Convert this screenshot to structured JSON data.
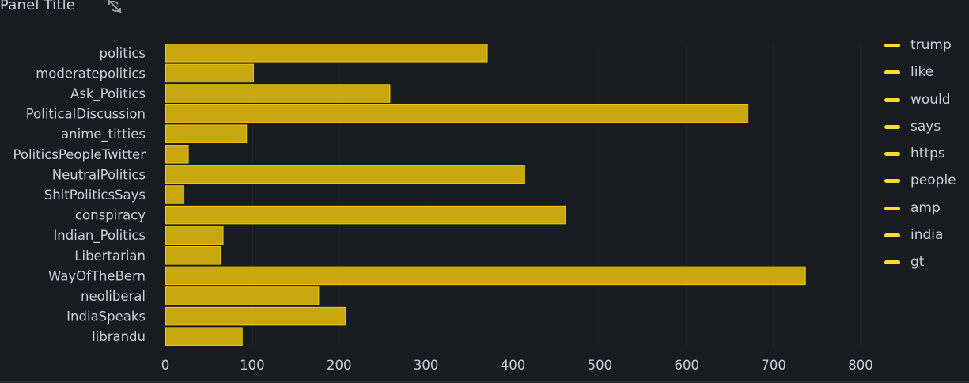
{
  "panel": {
    "title": "Panel Title",
    "status_icon": "link-off-icon"
  },
  "colors": {
    "background": "#181b1f",
    "bar_fill": "#c8a70f",
    "bar_stroke": "#f2cc0c",
    "legend_swatch": "#fade2a",
    "grid": "#2c3038",
    "text": "#ccccdc"
  },
  "chart_data": {
    "type": "bar",
    "orientation": "horizontal",
    "categories": [
      "politics",
      "moderatepolitics",
      "Ask_Politics",
      "PoliticalDiscussion",
      "anime_titties",
      "PoliticsPeopleTwitter",
      "NeutralPolitics",
      "ShitPoliticsSays",
      "conspiracy",
      "Indian_Politics",
      "Libertarian",
      "WayOfTheBern",
      "neoliberal",
      "IndiaSpeaks",
      "librandu"
    ],
    "values": [
      370,
      101,
      258,
      670,
      93,
      26,
      413,
      21,
      460,
      66,
      63,
      736,
      176,
      207,
      88
    ],
    "xlim": [
      0,
      800
    ],
    "xticks": [
      0,
      100,
      200,
      300,
      400,
      500,
      600,
      700,
      800
    ],
    "grid": true,
    "legend": {
      "placement": "right",
      "entries": [
        "trump",
        "like",
        "would",
        "says",
        "https",
        "people",
        "amp",
        "india",
        "gt"
      ]
    }
  }
}
